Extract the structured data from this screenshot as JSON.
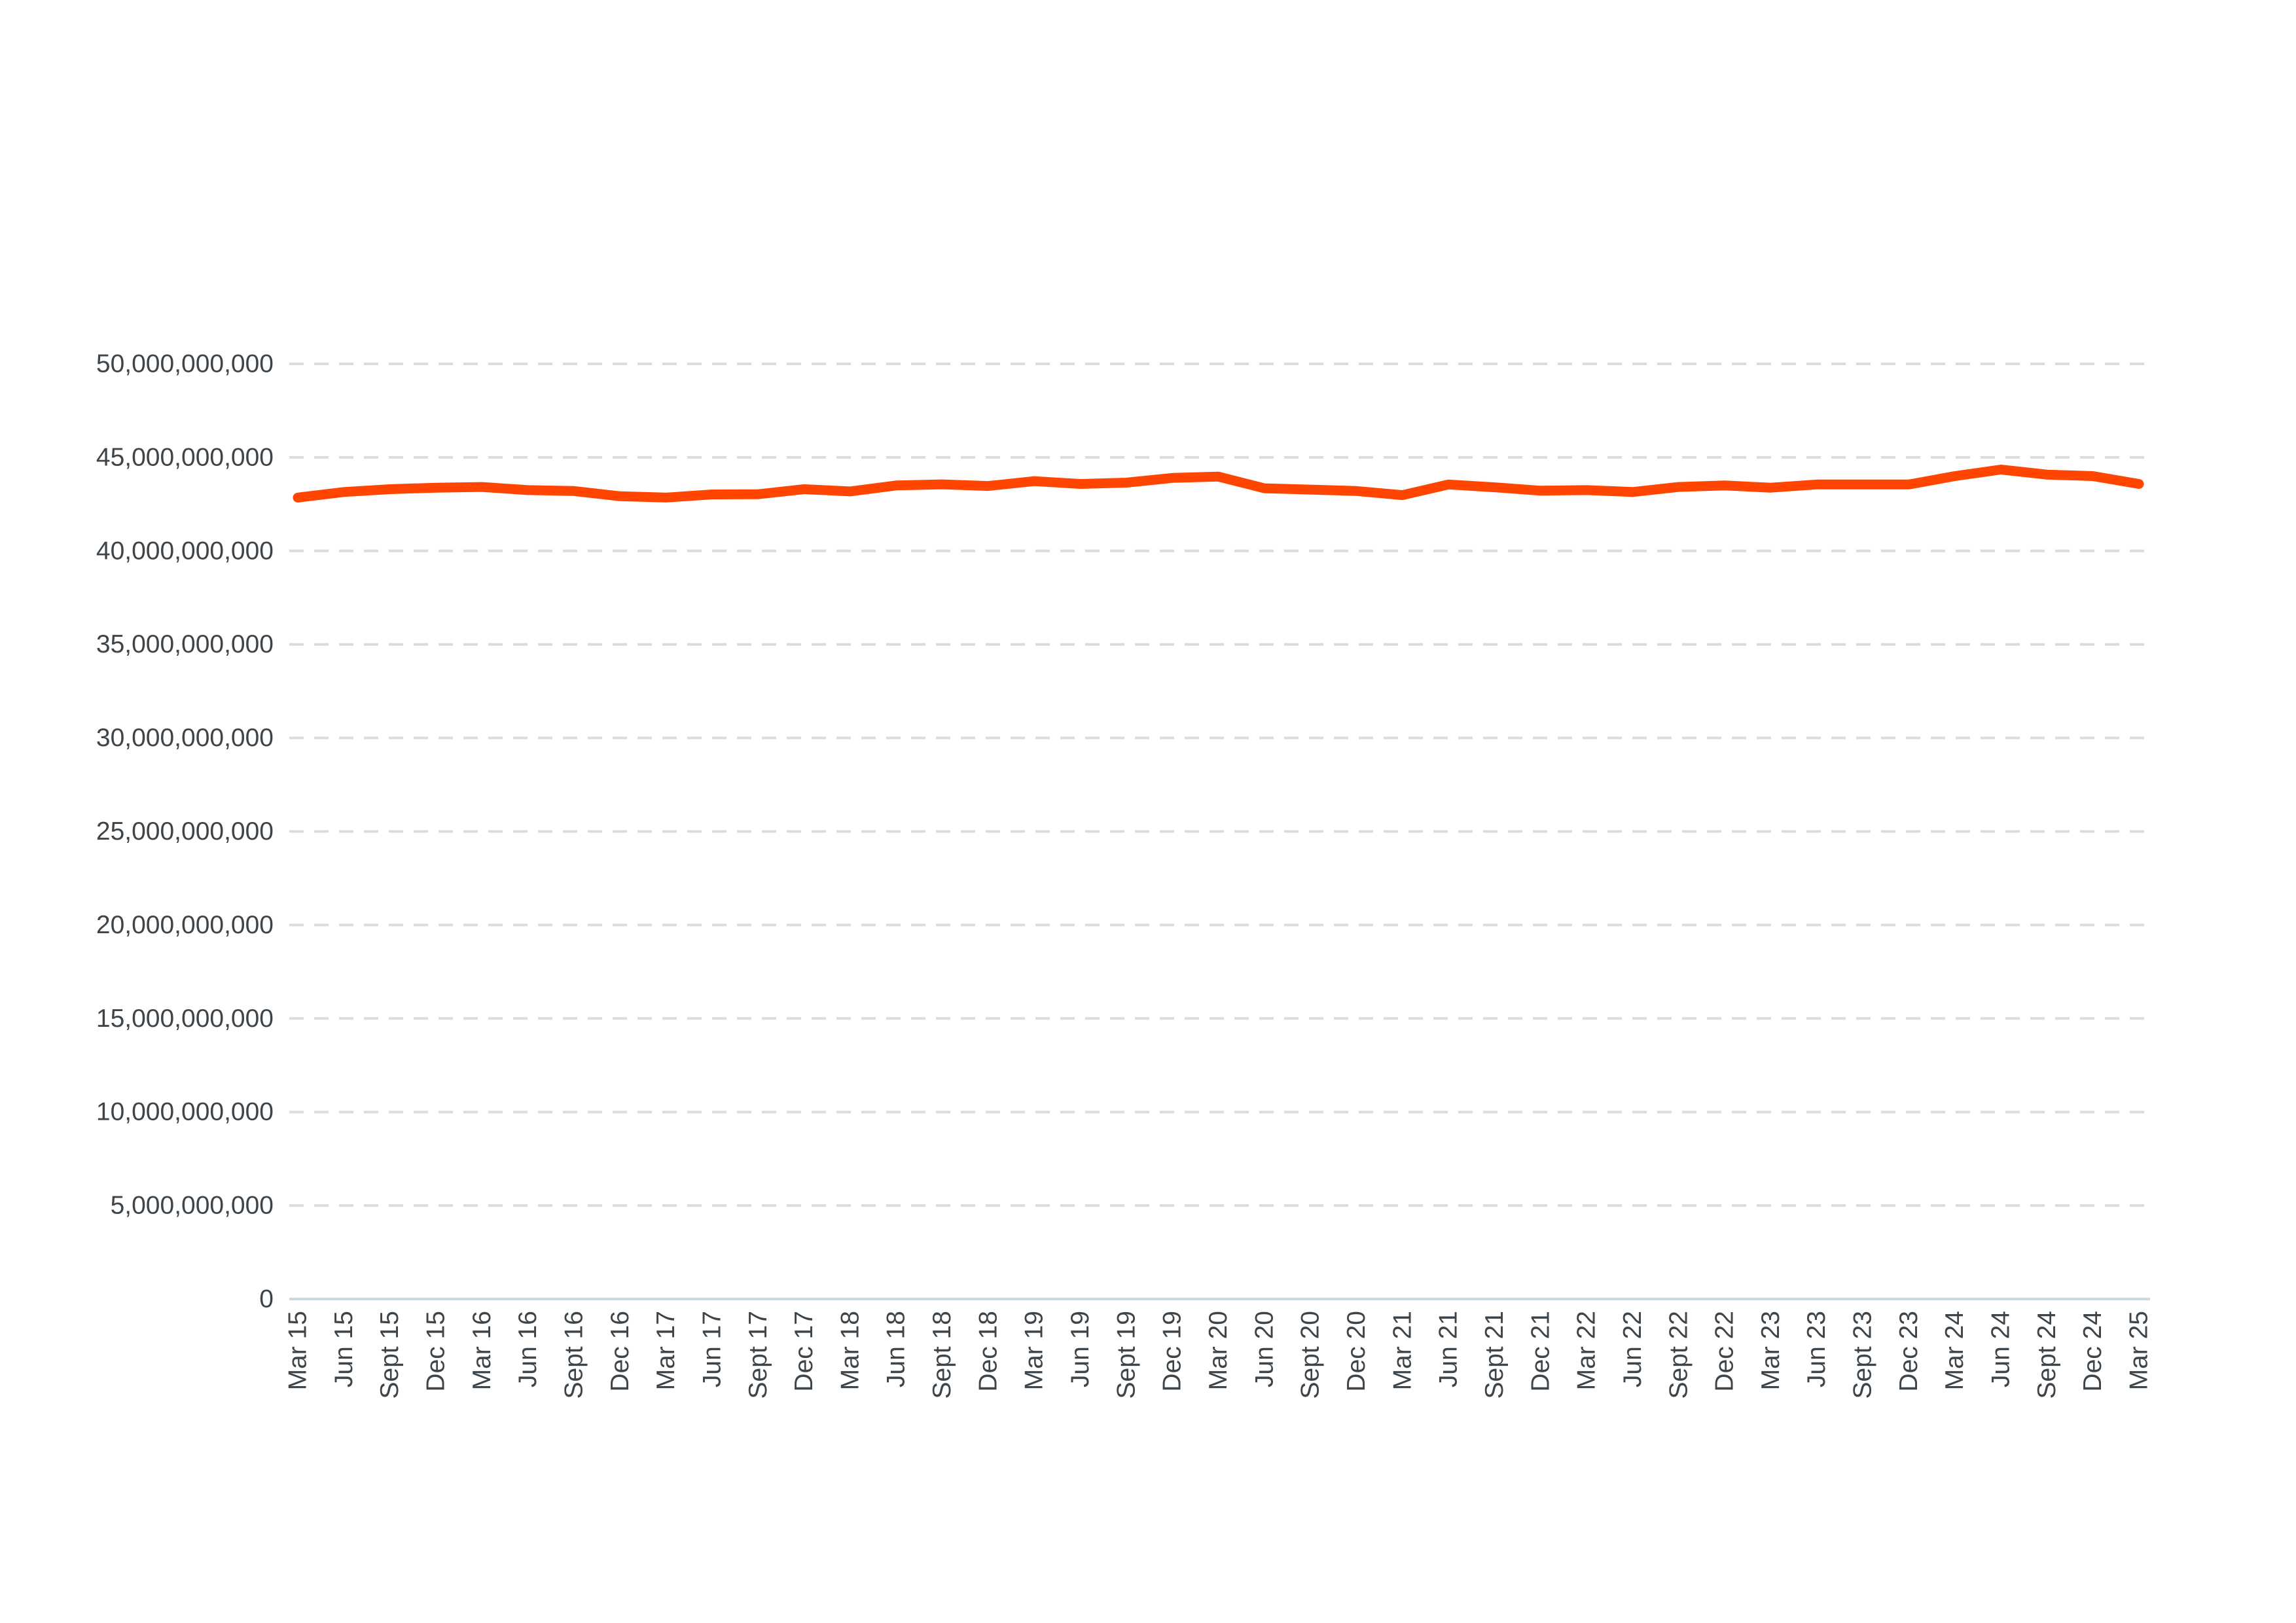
{
  "chart_data": {
    "type": "line",
    "title": "",
    "xlabel": "",
    "ylabel": "",
    "ylim": [
      0,
      50000000000
    ],
    "y_ticks": [
      0,
      5000000000,
      10000000000,
      15000000000,
      20000000000,
      25000000000,
      30000000000,
      35000000000,
      40000000000,
      45000000000,
      50000000000
    ],
    "y_tick_labels": [
      "0",
      "5,000,000,000",
      "10,000,000,000",
      "15,000,000,000",
      "20,000,000,000",
      "25,000,000,000",
      "30,000,000,000",
      "35,000,000,000",
      "40,000,000,000",
      "45,000,000,000",
      "50,000,000,000"
    ],
    "grid": true,
    "legend": "none",
    "categories": [
      "Mar 15",
      "Jun 15",
      "Sept 15",
      "Dec 15",
      "Mar 16",
      "Jun 16",
      "Sept 16",
      "Dec 16",
      "Mar 17",
      "Jun 17",
      "Sept 17",
      "Dec 17",
      "Mar 18",
      "Jun 18",
      "Sept 18",
      "Dec 18",
      "Mar 19",
      "Jun 19",
      "Sept 19",
      "Dec 19",
      "Mar 20",
      "Jun 20",
      "Sept 20",
      "Dec 20",
      "Mar 21",
      "Jun 21",
      "Sept 21",
      "Dec 21",
      "Mar 22",
      "Jun 22",
      "Sept 22",
      "Dec 22",
      "Mar 23",
      "Jun 23",
      "Sept 23",
      "Dec 23",
      "Mar 24",
      "Jun 24",
      "Sept 24",
      "Dec 24",
      "Mar 25"
    ],
    "series": [
      {
        "color": "#ff4500",
        "values": [
          42850000000,
          43150000000,
          43300000000,
          43380000000,
          43420000000,
          43250000000,
          43200000000,
          42920000000,
          42850000000,
          43020000000,
          43030000000,
          43300000000,
          43180000000,
          43500000000,
          43560000000,
          43470000000,
          43730000000,
          43580000000,
          43650000000,
          43900000000,
          43970000000,
          43350000000,
          43280000000,
          43200000000,
          42980000000,
          43550000000,
          43400000000,
          43220000000,
          43250000000,
          43150000000,
          43420000000,
          43500000000,
          43380000000,
          43550000000,
          43550000000,
          43550000000,
          44000000000,
          44350000000,
          44080000000,
          44000000000,
          43580000000
        ]
      }
    ]
  }
}
